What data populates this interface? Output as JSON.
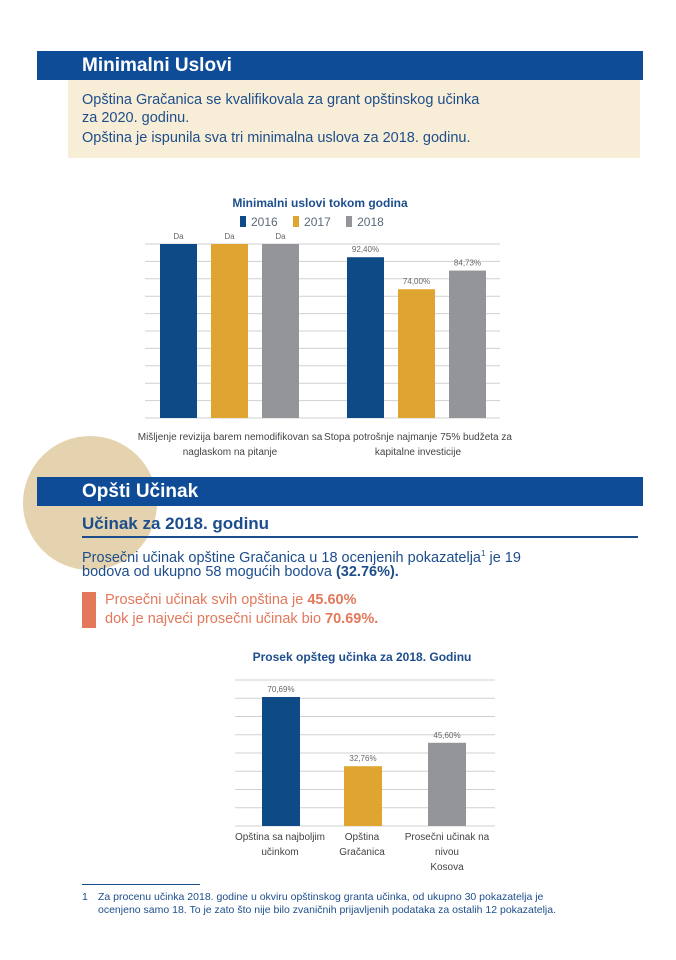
{
  "section1": {
    "title": "Minimalni Uslovi",
    "info_line1": "Opština Gračanica se kvalifikovala za grant opštinskog učinka",
    "info_line2": "za 2020. godinu.",
    "info_line3": "Opština je ispunila sva tri minimalna uslova za 2018. godinu."
  },
  "chart1": {
    "title": "Minimalni uslovi tokom godina",
    "legend": [
      "2016",
      "2017",
      "2018"
    ],
    "colors": [
      "#0d4a86",
      "#e0a530",
      "#939598"
    ],
    "cat1_line1": "Mišljenje revizija barem nemodifikovan sa",
    "cat1_line2": "naglaskom na pitanje",
    "cat2_line1": "Stopa potrošnje najmanje 75% budžeta za",
    "cat2_line2": "kapitalne investicije"
  },
  "section2": {
    "title": "Opšti Učinak",
    "subtitle": "Učinak za 2018. godinu",
    "lead_line1": "Prosečni učinak opštine Gračanica u 18 ocenjenih pokazatelja",
    "lead_sup": "1",
    "lead_line1_end": " je 19",
    "lead_line2": "bodova od ukupno 58 mogućih bodova ",
    "lead_bold": "(32.76%).",
    "accent_line1": "Prosečni učinak svih opština je ",
    "accent_bold1": "45.60%",
    "accent_line2": "dok je najveći prosečni učinak bio ",
    "accent_bold2": "70.69%."
  },
  "chart2": {
    "title": "Prosek opšteg učinka za 2018. Godinu"
  },
  "footnote": {
    "number": "1",
    "line1": "Za procenu učinka 2018. godine u okviru opštinskog granta učinka, od ukupno 30 pokazatelja je",
    "line2": "ocenjeno samo 18. To je zato što nije bilo zvaničnih prijavljenih podataka za ostalih 12 pokazatelja."
  },
  "chart_data": [
    {
      "type": "bar",
      "title": "Minimalni uslovi tokom godina",
      "categories": [
        "Mišljenje revizija barem nemodifikovan sa naglaskom na pitanje",
        "Stopa potrošnje najmanje 75% budžeta za kapitalne investicije"
      ],
      "series": [
        {
          "name": "2016",
          "values": [
            100,
            92.4
          ],
          "labels": [
            "Da",
            "92,40%"
          ]
        },
        {
          "name": "2017",
          "values": [
            100,
            74.0
          ],
          "labels": [
            "Da",
            "74,00%"
          ]
        },
        {
          "name": "2018",
          "values": [
            100,
            84.73
          ],
          "labels": [
            "Da",
            "84,73%"
          ]
        }
      ],
      "ylim": [
        0,
        100
      ],
      "grid": true,
      "legend": "top"
    },
    {
      "type": "bar",
      "title": "Prosek opšteg učinka za 2018. Godinu",
      "categories": [
        "Opština sa najboljim učinkom",
        "Opština Gračanica",
        "Prosečni učinak na nivou Kosova"
      ],
      "values": [
        70.69,
        32.76,
        45.6
      ],
      "labels": [
        "70,69%",
        "32,76%",
        "45,60%"
      ],
      "colors": [
        "#0d4a86",
        "#e0a530",
        "#939598"
      ],
      "ylim": [
        0,
        80
      ],
      "grid": true
    }
  ]
}
